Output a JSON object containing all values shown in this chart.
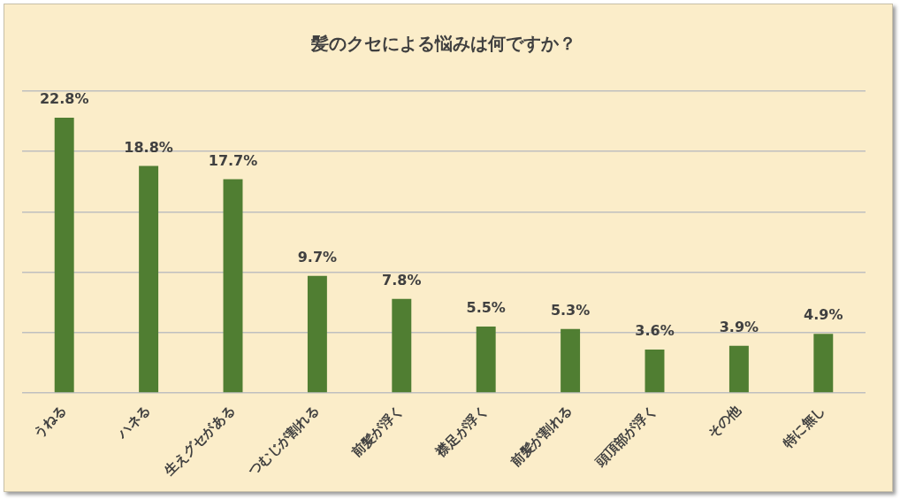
{
  "chart_data": {
    "type": "bar",
    "title": "髪のクセによる悩みは何ですか？",
    "categories": [
      "うねる",
      "ハネる",
      "生えグセがある",
      "つむじが割れる",
      "前髪が浮く",
      "襟足が浮く",
      "前髪が割れる",
      "頭頂部が浮く",
      "その他",
      "特に無し"
    ],
    "values": [
      22.8,
      18.8,
      17.7,
      9.7,
      7.8,
      5.5,
      5.3,
      3.6,
      3.9,
      4.9
    ],
    "value_labels": [
      "22.8%",
      "18.8%",
      "17.7%",
      "9.7%",
      "7.8%",
      "5.5%",
      "5.3%",
      "3.6%",
      "3.9%",
      "4.9%"
    ],
    "color": "#507e32",
    "ylim": [
      0,
      25
    ],
    "yticks": [
      {
        "value": 0,
        "label": null
      },
      {
        "value": 5,
        "label": null
      },
      {
        "value": 10,
        "label": null
      },
      {
        "value": 15,
        "label": null
      },
      {
        "value": 20,
        "label": null
      },
      {
        "value": 25,
        "label": null
      }
    ],
    "grid": "y",
    "legend": false,
    "tick_labels": "x"
  }
}
